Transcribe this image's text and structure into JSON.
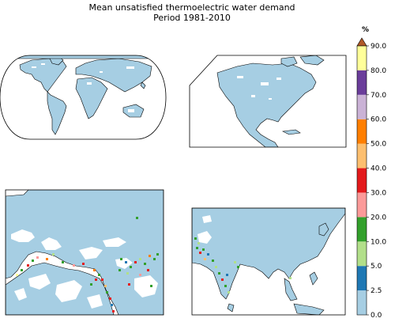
{
  "chart_data": {
    "type": "heatmap",
    "title": "Mean unsatisfied thermoelectric water demand",
    "subtitle": "Period 1981-2010",
    "colorbar": {
      "label": "%",
      "boundaries": [
        0.0,
        2.5,
        5.0,
        10.0,
        20.0,
        30.0,
        40.0,
        50.0,
        60.0,
        70.0,
        80.0,
        90.0
      ],
      "tick_labels": [
        "0.0",
        "2.5",
        "5.0",
        "10.0",
        "20.0",
        "30.0",
        "40.0",
        "50.0",
        "60.0",
        "70.0",
        "80.0",
        "90.0"
      ],
      "colors": [
        "#a6cee3",
        "#1f78b4",
        "#b2df8a",
        "#33a02c",
        "#fb9a99",
        "#e31a1c",
        "#fdbf6f",
        "#ff7f00",
        "#cab2d6",
        "#6a3d9a",
        "#ffff99"
      ],
      "extend_color": "#b15928",
      "extend": "max"
    },
    "panels": [
      {
        "region": "World",
        "dominant_range": "0.0-2.5"
      },
      {
        "region": "North and Central America",
        "dominant_range": "0.0-2.5"
      },
      {
        "region": "Europe, North Africa and Middle East",
        "dominant_range": "0.0-2.5",
        "hotspots": [
          "Mediterranean coast",
          "Nile valley",
          "Red Sea coast",
          "Persian Gulf",
          "Iraq"
        ]
      },
      {
        "region": "South and East Asia",
        "dominant_range": "0.0-2.5",
        "hotspots": [
          "Pakistan",
          "Western India",
          "Southern India"
        ]
      }
    ]
  }
}
